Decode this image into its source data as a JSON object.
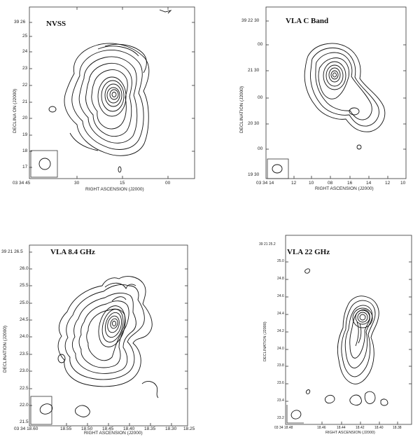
{
  "panels": [
    {
      "title": "NVSS",
      "xlabel": "RIGHT ASCENSION (J2000)",
      "ylabel": "DECLINA  ON (J2000)",
      "x_ticks": [
        "03 34 45",
        "30",
        "15",
        "00"
      ],
      "y_ticks": [
        "39 26",
        "25",
        "24",
        "23",
        "22",
        "21",
        "20",
        "19",
        "18",
        "17"
      ]
    },
    {
      "title": "VLA C Band",
      "xlabel": "RIGHT ASCENSION (J2000)",
      "ylabel": "DECLINATION (J2000)",
      "x_ticks": [
        "03 34 14",
        "12",
        "10",
        "08",
        "16",
        "14",
        "12",
        "10"
      ],
      "y_ticks": [
        "39 22 30",
        "00",
        "21 30",
        "00",
        "20 30",
        "00",
        "19 30"
      ]
    },
    {
      "title": "VLA 8.4 GHz",
      "xlabel": "RIGHT ASCENSION (J2000)",
      "ylabel": "DECLINATION (J2000)",
      "x_ticks": [
        "03 34 18.60",
        "18.55",
        "18.50",
        "18.45",
        "18.40",
        "18.35",
        "18.30",
        "18.25"
      ],
      "y_ticks": [
        "39 21 26.5",
        "26.0",
        "25.5",
        "25.0",
        "24.5",
        "24.0",
        "23.5",
        "23.0",
        "22.5",
        "22.0",
        "21.5"
      ]
    },
    {
      "title": "VLA 22 GHz",
      "xlabel": "RIGHT ASCENSION (J2000)",
      "ylabel": "DECLINATION (J2000)",
      "x_ticks": [
        "03 34 18.48",
        "18.46",
        "18.44",
        "18.42",
        "18.40",
        "18.38"
      ],
      "y_ticks": [
        "39 21 25.2",
        "25.0",
        "24.8",
        "24.6",
        "24.4",
        "24.2",
        "24.0",
        "23.8",
        "23.6",
        "23.4",
        "23.2"
      ]
    }
  ]
}
